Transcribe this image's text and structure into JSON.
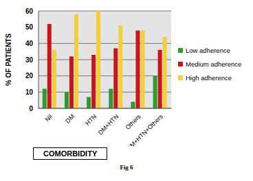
{
  "chart_data": {
    "type": "bar",
    "categories": [
      "Nil",
      "DM",
      "HTN",
      "DM+HTN",
      "Others",
      "DM+HTN+Others"
    ],
    "series": [
      {
        "name": "Low adherence",
        "color": "#2e9a2e",
        "values": [
          12,
          10,
          7,
          12,
          4,
          20
        ]
      },
      {
        "name": "Medium adherence",
        "color": "#c8161d",
        "values": [
          52,
          32,
          33,
          37,
          48,
          36
        ]
      },
      {
        "name": "High adherence",
        "color": "#f2d03c",
        "values": [
          36,
          58,
          60,
          51,
          48,
          44
        ]
      }
    ],
    "x_label": "COMORBIDITY",
    "y_label": "% OF PATIENTS",
    "ylim": [
      0,
      60
    ],
    "yticks": [
      0,
      10,
      20,
      30,
      40,
      50,
      60
    ],
    "grid": true,
    "legend": "right",
    "annotations": [
      "Fig 6"
    ]
  }
}
